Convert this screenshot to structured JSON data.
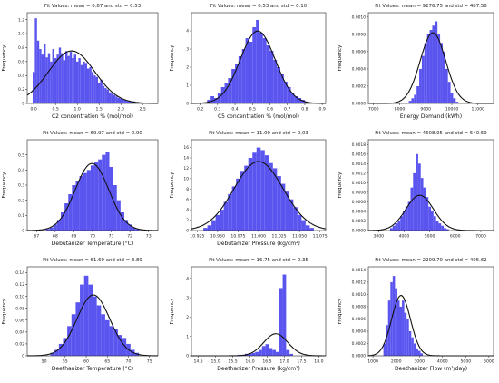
{
  "colors": {
    "bar": "#5b55f0",
    "curve": "#111111",
    "axis": "#222222"
  },
  "chart_data": [
    {
      "type": "bar",
      "title": "Fit Values: mean = 0.87 and std = 0.53",
      "xlabel": "C2 concentration % (mol/mol)",
      "ylabel": "Frequency",
      "xlim": [
        -0.15,
        2.85
      ],
      "ylim": [
        0,
        1.3
      ],
      "xticks": [
        0.0,
        0.5,
        1.0,
        1.5,
        2.0,
        2.5
      ],
      "xtick_labels": [
        "0.0",
        "0.5",
        "1.0",
        "1.5",
        "2.0",
        "2.5"
      ],
      "yticks": [
        0,
        0.2,
        0.4,
        0.6,
        0.8,
        1.0,
        1.2
      ],
      "ytick_labels": [
        "0",
        "0.2",
        "0.4",
        "0.6",
        "0.8",
        "1.0",
        "1.2"
      ],
      "x": [
        0.0,
        0.05,
        0.1,
        0.15,
        0.2,
        0.25,
        0.3,
        0.35,
        0.4,
        0.45,
        0.5,
        0.55,
        0.6,
        0.65,
        0.7,
        0.75,
        0.8,
        0.85,
        0.9,
        0.95,
        1.0,
        1.05,
        1.1,
        1.15,
        1.2,
        1.25,
        1.3,
        1.35,
        1.4,
        1.45,
        1.5,
        1.55,
        1.6,
        1.65,
        1.7,
        1.75,
        1.8,
        1.85,
        1.9,
        1.95,
        2.0,
        2.05,
        2.1,
        2.15,
        2.2,
        2.25,
        2.3,
        2.35,
        2.4,
        2.45,
        2.5
      ],
      "values": [
        0.45,
        1.22,
        0.9,
        0.78,
        0.7,
        0.85,
        0.66,
        0.72,
        0.6,
        0.78,
        0.65,
        0.7,
        0.8,
        0.72,
        0.62,
        0.75,
        0.68,
        0.74,
        0.65,
        0.7,
        0.6,
        0.65,
        0.55,
        0.6,
        0.58,
        0.5,
        0.52,
        0.45,
        0.4,
        0.38,
        0.3,
        0.34,
        0.25,
        0.22,
        0.2,
        0.16,
        0.14,
        0.12,
        0.1,
        0.08,
        0.07,
        0.06,
        0.05,
        0.04,
        0.04,
        0.03,
        0.03,
        0.02,
        0.02,
        0.01,
        0.01
      ],
      "fit": {
        "mean": 0.87,
        "std": 0.53
      }
    },
    {
      "type": "bar",
      "title": "Fit Values: mean = 0.53 and std = 0.10",
      "xlabel": "C5 concentration % (mol/mol)",
      "ylabel": "Frequency",
      "xlim": [
        0.15,
        0.92
      ],
      "ylim": [
        0,
        5.0
      ],
      "xticks": [
        0.2,
        0.3,
        0.4,
        0.5,
        0.6,
        0.7,
        0.8,
        0.9
      ],
      "xtick_labels": [
        "0.2",
        "0.3",
        "0.4",
        "0.5",
        "0.6",
        "0.7",
        "0.8",
        "0.9"
      ],
      "yticks": [
        0,
        1,
        2,
        3,
        4
      ],
      "ytick_labels": [
        "0",
        "1",
        "2",
        "3",
        "4"
      ],
      "x": [
        0.25,
        0.27,
        0.29,
        0.31,
        0.33,
        0.35,
        0.37,
        0.39,
        0.41,
        0.43,
        0.45,
        0.47,
        0.49,
        0.51,
        0.53,
        0.55,
        0.57,
        0.59,
        0.61,
        0.63,
        0.65,
        0.67,
        0.69,
        0.71,
        0.73,
        0.75,
        0.77,
        0.79,
        0.81
      ],
      "values": [
        0.2,
        0.4,
        0.3,
        0.6,
        0.9,
        1.1,
        1.4,
        1.9,
        2.2,
        2.6,
        3.0,
        3.6,
        3.4,
        4.2,
        4.6,
        3.9,
        3.6,
        3.2,
        2.9,
        2.4,
        2.0,
        1.6,
        1.2,
        0.9,
        0.6,
        0.4,
        0.3,
        0.2,
        0.1
      ],
      "fit": {
        "mean": 0.53,
        "std": 0.1
      }
    },
    {
      "type": "bar",
      "title": "Fit Values: mean = 9276.75 and std = 487.58",
      "xlabel": "Energy Demand (kWh)",
      "ylabel": "Frequency",
      "xlim": [
        6800,
        11600
      ],
      "ylim": [
        0,
        0.00105
      ],
      "xticks": [
        7000,
        8000,
        9000,
        10000,
        11000
      ],
      "xtick_labels": [
        "7000",
        "8000",
        "9000",
        "10000",
        "11000"
      ],
      "yticks": [
        0,
        0.0002,
        0.0004,
        0.0006,
        0.0008,
        0.001
      ],
      "ytick_labels": [
        "0.0000",
        "0.0002",
        "0.0004",
        "0.0006",
        "0.0008",
        "0.0010"
      ],
      "x": [
        8400,
        8500,
        8600,
        8700,
        8800,
        8900,
        9000,
        9100,
        9200,
        9300,
        9400,
        9500,
        9600,
        9700,
        9800,
        9900,
        10000,
        10100,
        10200
      ],
      "values": [
        3e-05,
        6e-05,
        0.0001,
        0.0002,
        0.0004,
        0.00055,
        0.0007,
        0.0008,
        0.00085,
        0.0009,
        0.00095,
        0.0008,
        0.0007,
        0.0006,
        0.0004,
        0.00025,
        0.00012,
        6e-05,
        2e-05
      ],
      "fit": {
        "mean": 9276.75,
        "std": 487.58
      }
    },
    {
      "type": "bar",
      "title": "Fit Values: mean = 69.97 and std = 0.90",
      "xlabel": "Debutanizer Temperature (°C)",
      "ylabel": "Frequency",
      "xlim": [
        66.5,
        73.5
      ],
      "ylim": [
        0,
        0.6
      ],
      "xticks": [
        67,
        68,
        69,
        70,
        71,
        72,
        73
      ],
      "xtick_labels": [
        "67",
        "68",
        "69",
        "70",
        "71",
        "72",
        "73"
      ],
      "yticks": [
        0,
        0.1,
        0.2,
        0.3,
        0.4,
        0.5
      ],
      "ytick_labels": [
        "0",
        "0.1",
        "0.2",
        "0.3",
        "0.4",
        "0.5"
      ],
      "x": [
        67.6,
        67.8,
        68.0,
        68.2,
        68.4,
        68.6,
        68.8,
        69.0,
        69.2,
        69.4,
        69.6,
        69.8,
        70.0,
        70.2,
        70.4,
        70.6,
        70.8,
        71.0,
        71.2,
        71.4,
        71.6,
        71.8,
        72.0,
        72.2,
        72.4
      ],
      "values": [
        0.01,
        0.02,
        0.04,
        0.07,
        0.12,
        0.18,
        0.24,
        0.3,
        0.33,
        0.36,
        0.38,
        0.4,
        0.43,
        0.45,
        0.47,
        0.5,
        0.52,
        0.42,
        0.3,
        0.2,
        0.12,
        0.07,
        0.04,
        0.02,
        0.01
      ],
      "fit": {
        "mean": 69.97,
        "std": 0.9
      }
    },
    {
      "type": "bar",
      "title": "Fit Values: mean = 11.00 and std = 0.03",
      "xlabel": "Debutanizer Pressure (kg/cm²)",
      "ylabel": "Frequency",
      "xlim": [
        10.918,
        11.082
      ],
      "ylim": [
        0,
        17.5
      ],
      "xticks": [
        10.925,
        10.95,
        10.975,
        11.0,
        11.025,
        11.05,
        11.075
      ],
      "xtick_labels": [
        "10.925",
        "10.950",
        "10.975",
        "11.000",
        "11.025",
        "11.050",
        "11.075"
      ],
      "yticks": [
        0,
        2,
        4,
        6,
        8,
        10,
        12,
        14,
        16
      ],
      "ytick_labels": [
        "0",
        "2",
        "4",
        "6",
        "8",
        "10",
        "12",
        "14",
        "16"
      ],
      "x": [
        10.935,
        10.94,
        10.945,
        10.95,
        10.955,
        10.96,
        10.965,
        10.97,
        10.975,
        10.98,
        10.985,
        10.99,
        10.995,
        11.0,
        11.005,
        11.01,
        11.015,
        11.02,
        11.025,
        11.03,
        11.035,
        11.04,
        11.045,
        11.05,
        11.055,
        11.06,
        11.065
      ],
      "values": [
        0.5,
        1,
        2,
        3,
        4,
        5.5,
        7,
        8.5,
        10,
        11.5,
        12.5,
        14,
        15,
        16,
        15.5,
        14.5,
        13,
        12,
        10.5,
        9,
        7.5,
        6,
        4.5,
        3,
        2,
        1,
        0.5
      ],
      "fit": {
        "mean": 11.0,
        "std": 0.03
      }
    },
    {
      "type": "bar",
      "title": "Fit Values: mean = 4608.95 and std = 540.59",
      "xlabel": "",
      "ylabel": "Frequency",
      "xlim": [
        2600,
        7500
      ],
      "ylim": [
        0,
        0.0019
      ],
      "xticks": [
        3000,
        4000,
        5000,
        6000,
        7000
      ],
      "xtick_labels": [
        "3000",
        "4000",
        "5000",
        "6000",
        "7000"
      ],
      "yticks": [
        0,
        0.0002,
        0.0004,
        0.0006,
        0.0008,
        0.001,
        0.0012,
        0.0014,
        0.0016,
        0.0018
      ],
      "ytick_labels": [
        "0.0000",
        "0.0002",
        "0.0004",
        "0.0006",
        "0.0008",
        "0.0010",
        "0.0012",
        "0.0014",
        "0.0016",
        "0.0018"
      ],
      "x": [
        3500,
        3600,
        3700,
        3800,
        3900,
        4000,
        4100,
        4200,
        4300,
        4400,
        4500,
        4600,
        4700,
        4800,
        4900,
        5000,
        5100,
        5200,
        5300,
        5400,
        5500,
        5600,
        5700
      ],
      "values": [
        5e-05,
        0.0001,
        0.00015,
        0.0002,
        0.0003,
        0.0004,
        0.0005,
        0.0006,
        0.0009,
        0.0012,
        0.0016,
        0.0014,
        0.0011,
        0.0009,
        0.0007,
        0.0005,
        0.0004,
        0.0003,
        0.0002,
        0.00015,
        0.0001,
        5e-05,
        3e-05
      ],
      "fit": {
        "mean": 4608.95,
        "std": 540.59
      }
    },
    {
      "type": "bar",
      "title": "Fit Values: mean = 61.69 and std = 3.89",
      "xlabel": "Deethanizer Temperature (°C)",
      "ylabel": "Frequency",
      "xlim": [
        46,
        77
      ],
      "ylim": [
        0,
        0.15
      ],
      "xticks": [
        50,
        55,
        60,
        65,
        70,
        75
      ],
      "xtick_labels": [
        "50",
        "55",
        "60",
        "65",
        "70",
        "75"
      ],
      "yticks": [
        0,
        0.02,
        0.04,
        0.06,
        0.08,
        0.1,
        0.12,
        0.14
      ],
      "ytick_labels": [
        "0",
        "0.02",
        "0.04",
        "0.06",
        "0.08",
        "0.10",
        "0.12",
        "0.14"
      ],
      "x": [
        52,
        53,
        54,
        55,
        56,
        57,
        58,
        59,
        60,
        61,
        62,
        63,
        64,
        65,
        66,
        67,
        68,
        69,
        70,
        71,
        72
      ],
      "values": [
        0.005,
        0.01,
        0.02,
        0.03,
        0.05,
        0.07,
        0.09,
        0.12,
        0.135,
        0.12,
        0.1,
        0.085,
        0.07,
        0.06,
        0.05,
        0.045,
        0.035,
        0.03,
        0.02,
        0.01,
        0.005
      ],
      "fit": {
        "mean": 61.69,
        "std": 3.89
      }
    },
    {
      "type": "bar",
      "title": "Fit Values: mean = 16.75 and std = 0.35",
      "xlabel": "Deethanizer Pressure (kg/cm²)",
      "ylabel": "Frequency",
      "xlim": [
        14.3,
        18.2
      ],
      "ylim": [
        0,
        4.6
      ],
      "xticks": [
        14.5,
        15.0,
        15.5,
        16.0,
        16.5,
        17.0,
        17.5,
        18.0
      ],
      "xtick_labels": [
        "14.5",
        "15.0",
        "15.5",
        "16.0",
        "16.5",
        "17.0",
        "17.5",
        "18.0"
      ],
      "yticks": [
        0,
        1,
        2,
        3,
        4
      ],
      "ytick_labels": [
        "0",
        "1",
        "2",
        "3",
        "4"
      ],
      "x": [
        15.7,
        15.8,
        15.9,
        16.0,
        16.1,
        16.2,
        16.3,
        16.4,
        16.5,
        16.6,
        16.7,
        16.8,
        16.9,
        17.0,
        17.1,
        17.2
      ],
      "values": [
        0.05,
        0.05,
        0.1,
        0.1,
        0.15,
        0.2,
        0.3,
        0.5,
        0.6,
        0.4,
        0.3,
        0.2,
        3.5,
        4.2,
        0.3,
        0.1
      ],
      "fit": {
        "mean": 16.75,
        "std": 0.35
      }
    },
    {
      "type": "bar",
      "title": "Fit Values: mean = 2209.70 and std = 405.62",
      "xlabel": "Deethanizer Flow (m³/day)",
      "ylabel": "Frequency",
      "xlim": [
        800,
        6200
      ],
      "ylim": [
        0,
        0.00145
      ],
      "xticks": [
        1000,
        2000,
        3000,
        4000,
        5000,
        6000
      ],
      "xtick_labels": [
        "1000",
        "2000",
        "3000",
        "4000",
        "5000",
        "6000"
      ],
      "yticks": [
        0,
        0.0002,
        0.0004,
        0.0006,
        0.0008,
        0.001,
        0.0012,
        0.0014
      ],
      "ytick_labels": [
        "0.0000",
        "0.0002",
        "0.0004",
        "0.0006",
        "0.0008",
        "0.0010",
        "0.0012",
        "0.0014"
      ],
      "x": [
        1500,
        1600,
        1700,
        1800,
        1900,
        2000,
        2100,
        2200,
        2300,
        2400,
        2500,
        2600,
        2700,
        2800,
        2900,
        3000,
        3100
      ],
      "values": [
        0.0002,
        0.0005,
        0.0009,
        0.0012,
        0.0013,
        0.0011,
        0.0009,
        0.0008,
        0.0009,
        0.0007,
        0.0006,
        0.0004,
        0.0003,
        0.0002,
        0.00012,
        8e-05,
        4e-05
      ],
      "fit": {
        "mean": 2209.7,
        "std": 405.62
      }
    }
  ]
}
